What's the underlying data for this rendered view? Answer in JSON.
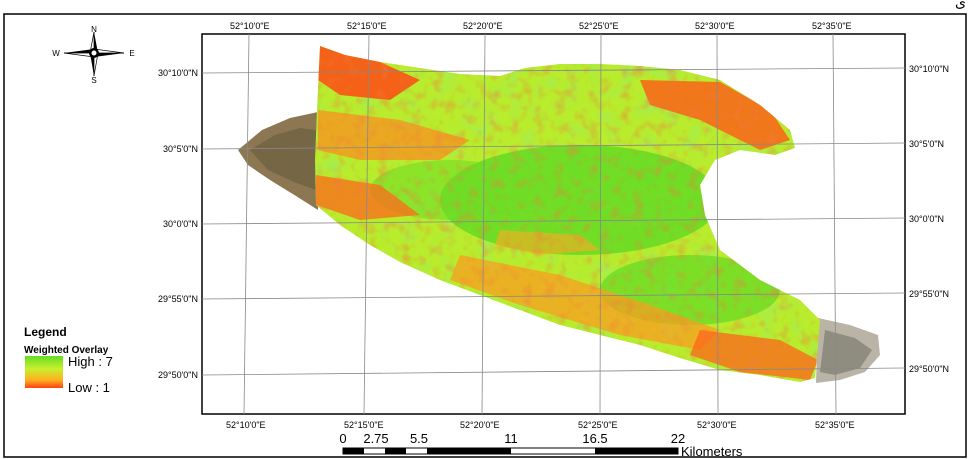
{
  "corner_char": "ى",
  "legend": {
    "title": "Legend",
    "layer": "Weighted Overlay",
    "high": "High : 7",
    "low": "Low : 1"
  },
  "north_arrow": {
    "n": "N",
    "s": "S",
    "e": "E",
    "w": "W"
  },
  "graticule": {
    "longitudes_top": [
      "52°10'0\"E",
      "52°15'0\"E",
      "52°20'0\"E",
      "52°25'0\"E",
      "52°30'0\"E",
      "52°35'0\"E"
    ],
    "longitudes_bottom": [
      "52°10'0\"E",
      "52°15'0\"E",
      "52°20'0\"E",
      "52°25'0\"E",
      "52°30'0\"E",
      "52°35'0\"E"
    ],
    "latitudes_left": [
      "30°10'0\"N",
      "30°5'0\"N",
      "30°0'0\"N",
      "29°55'0\"N",
      "29°50'0\"N"
    ],
    "latitudes_right": [
      "30°10'0\"N",
      "30°5'0\"N",
      "30°0'0\"N",
      "29°55'0\"N",
      "29°50'0\"N"
    ]
  },
  "scale_bar": {
    "ticks": [
      "0",
      "2.75",
      "5.5",
      "11",
      "16.5",
      "22"
    ],
    "units": "Kilometers"
  },
  "colors": {
    "high": "#55dd22",
    "mid": "#d4f030",
    "moderate": "#ffb020",
    "low": "#ff3a10",
    "imagery": "#8a7a5a"
  }
}
